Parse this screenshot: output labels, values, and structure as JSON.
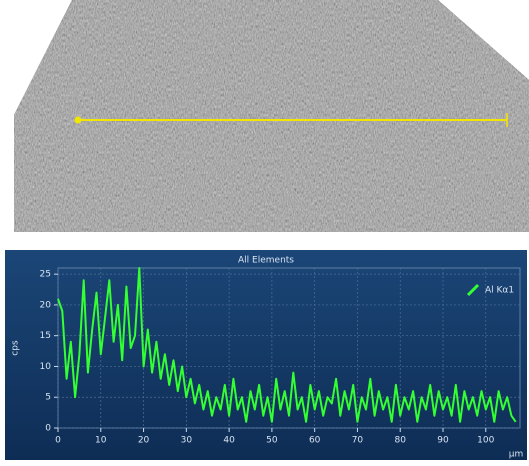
{
  "chart_data": {
    "type": "line",
    "title": "All Elements",
    "xlabel": "µm",
    "ylabel": "cps",
    "x": [
      0,
      1,
      2,
      3,
      4,
      5,
      6,
      7,
      8,
      9,
      10,
      11,
      12,
      13,
      14,
      15,
      16,
      17,
      18,
      19,
      20,
      21,
      22,
      23,
      24,
      25,
      26,
      27,
      28,
      29,
      30,
      31,
      32,
      33,
      34,
      35,
      36,
      37,
      38,
      39,
      40,
      41,
      42,
      43,
      44,
      45,
      46,
      47,
      48,
      49,
      50,
      51,
      52,
      53,
      54,
      55,
      56,
      57,
      58,
      59,
      60,
      61,
      62,
      63,
      64,
      65,
      66,
      67,
      68,
      69,
      70,
      71,
      72,
      73,
      74,
      75,
      76,
      77,
      78,
      79,
      80,
      81,
      82,
      83,
      84,
      85,
      86,
      87,
      88,
      89,
      90,
      91,
      92,
      93,
      94,
      95,
      96,
      97,
      98,
      99,
      100,
      101,
      102,
      103,
      104,
      105,
      106,
      107
    ],
    "series": [
      {
        "name": "Al Kα1",
        "color": "#33ff33",
        "values": [
          21,
          19,
          8,
          14,
          5,
          12,
          24,
          9,
          16,
          22,
          12,
          18,
          24,
          14,
          20,
          11,
          23,
          13,
          15,
          26,
          10,
          16,
          9,
          14,
          8,
          12,
          7,
          11,
          6,
          10,
          5,
          8,
          4,
          7,
          3,
          6,
          2,
          5,
          3,
          7,
          2,
          8,
          3,
          5,
          1,
          6,
          3,
          7,
          2,
          5,
          1,
          8,
          3,
          6,
          2,
          9,
          3,
          5,
          1,
          7,
          3,
          6,
          2,
          5,
          4,
          8,
          2,
          6,
          3,
          7,
          1,
          5,
          3,
          8,
          2,
          6,
          3,
          5,
          1,
          7,
          2,
          5,
          3,
          6,
          1,
          5,
          3,
          7,
          2,
          6,
          3,
          5,
          2,
          7,
          1,
          6,
          3,
          5,
          2,
          6,
          3,
          5,
          1,
          6,
          3,
          5,
          2,
          1
        ]
      }
    ],
    "xlim": [
      0,
      108
    ],
    "ylim": [
      0,
      26
    ],
    "xticks": [
      0,
      10,
      20,
      30,
      40,
      50,
      60,
      70,
      80,
      90,
      100
    ],
    "yticks": [
      0,
      5,
      10,
      15,
      20,
      25
    ],
    "grid": true,
    "legend": "upper right"
  }
}
